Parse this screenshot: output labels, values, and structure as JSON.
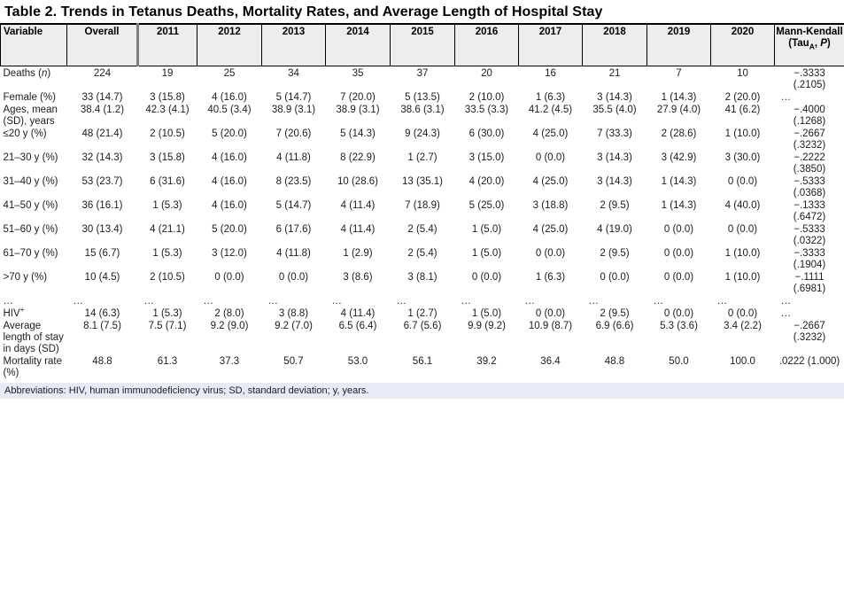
{
  "title": "Table 2. Trends in Tetanus Deaths, Mortality Rates, and Average Length of Hospital Stay",
  "footnote": "Abbreviations: HIV, human immunodeficiency virus; SD, standard deviation; y, years.",
  "colors": {
    "header_bg": "#ededed",
    "footnote_bg": "#e9eaf8",
    "divider": "#7f7f7f",
    "border": "#000000"
  },
  "table": {
    "columns": [
      {
        "name": "variable",
        "segs": [
          {
            "t": "Variable"
          }
        ]
      },
      {
        "name": "overall",
        "segs": [
          {
            "t": "Overall"
          }
        ]
      },
      {
        "name": "2011",
        "segs": [
          {
            "t": "2011"
          }
        ]
      },
      {
        "name": "2012",
        "segs": [
          {
            "t": "2012"
          }
        ]
      },
      {
        "name": "2013",
        "segs": [
          {
            "t": "2013"
          }
        ]
      },
      {
        "name": "2014",
        "segs": [
          {
            "t": "2014"
          }
        ]
      },
      {
        "name": "2015",
        "segs": [
          {
            "t": "2015"
          }
        ]
      },
      {
        "name": "2016",
        "segs": [
          {
            "t": "2016"
          }
        ]
      },
      {
        "name": "2017",
        "segs": [
          {
            "t": "2017"
          }
        ]
      },
      {
        "name": "2018",
        "segs": [
          {
            "t": "2018"
          }
        ]
      },
      {
        "name": "2019",
        "segs": [
          {
            "t": "2019"
          }
        ]
      },
      {
        "name": "2020",
        "segs": [
          {
            "t": "2020"
          }
        ]
      },
      {
        "name": "mann-kendall",
        "segs": [
          {
            "t": "Mann-Kendall (Tau"
          },
          {
            "t": "A",
            "s": "sub"
          },
          {
            "t": ", "
          },
          {
            "t": "P",
            "s": "i"
          },
          {
            "t": ")"
          }
        ]
      }
    ],
    "rows": [
      {
        "id": "deaths",
        "label": [
          {
            "t": "Deaths ("
          },
          {
            "t": "n",
            "s": "i"
          },
          {
            "t": ")"
          }
        ],
        "cells": [
          "224",
          "19",
          "25",
          "34",
          "35",
          "37",
          "20",
          "16",
          "21",
          "7",
          "10"
        ],
        "mk": [
          "−.3333",
          "(.2105)"
        ]
      },
      {
        "id": "female",
        "label": [
          {
            "t": "Female (%)"
          }
        ],
        "cells": [
          "33 (14.7)",
          "3 (15.8)",
          "4 (16.0)",
          "5 (14.7)",
          "7 (20.0)",
          "5 (13.5)",
          "2 (10.0)",
          "1 (6.3)",
          "3 (14.3)",
          "1 (14.3)",
          "2 (20.0)"
        ],
        "mk": [
          "…"
        ]
      },
      {
        "id": "ages-mean",
        "label": [
          {
            "t": "Ages, mean (SD), years"
          }
        ],
        "cells": [
          "38.4 (1.2)",
          "42.3 (4.1)",
          "40.5 (3.4)",
          "38.9 (3.1)",
          "38.9 (3.1)",
          "38.6 (3.1)",
          "33.5 (3.3)",
          "41.2 (4.5)",
          "35.5 (4.0)",
          "27.9 (4.0)",
          "41 (6.2)"
        ],
        "mk": [
          "−.4000",
          "(.1268)"
        ]
      },
      {
        "id": "age-le20",
        "label": [
          {
            "t": "≤20 y (%)"
          }
        ],
        "cells": [
          "48 (21.4)",
          "2 (10.5)",
          "5 (20.0)",
          "7 (20.6)",
          "5 (14.3)",
          "9 (24.3)",
          "6 (30.0)",
          "4 (25.0)",
          "7 (33.3)",
          "2 (28.6)",
          "1 (10.0)"
        ],
        "mk": [
          "−.2667",
          "(.3232)"
        ]
      },
      {
        "id": "age-21-30",
        "label": [
          {
            "t": "21–30 y (%)"
          }
        ],
        "cells": [
          "32 (14.3)",
          "3 (15.8)",
          "4 (16.0)",
          "4 (11.8)",
          "8 (22.9)",
          "1 (2.7)",
          "3 (15.0)",
          "0 (0.0)",
          "3 (14.3)",
          "3 (42.9)",
          "3 (30.0)"
        ],
        "mk": [
          "−.2222",
          "(.3850)"
        ]
      },
      {
        "id": "age-31-40",
        "label": [
          {
            "t": "31–40 y (%)"
          }
        ],
        "cells": [
          "53 (23.7)",
          "6 (31.6)",
          "4 (16.0)",
          "8 (23.5)",
          "10 (28.6)",
          "13 (35.1)",
          "4 (20.0)",
          "4 (25.0)",
          "3 (14.3)",
          "1 (14.3)",
          "0 (0.0)"
        ],
        "mk": [
          "−.5333",
          "(.0368)"
        ]
      },
      {
        "id": "age-41-50",
        "label": [
          {
            "t": "41–50 y (%)"
          }
        ],
        "cells": [
          "36 (16.1)",
          "1 (5.3)",
          "4 (16.0)",
          "5 (14.7)",
          "4 (11.4)",
          "7 (18.9)",
          "5 (25.0)",
          "3 (18.8)",
          "2 (9.5)",
          "1 (14.3)",
          "4 (40.0)"
        ],
        "mk": [
          "−.1333",
          "(.6472)"
        ]
      },
      {
        "id": "age-51-60",
        "label": [
          {
            "t": "51–60 y (%)"
          }
        ],
        "cells": [
          "30 (13.4)",
          "4 (21.1)",
          "5 (20.0)",
          "6 (17.6)",
          "4 (11.4)",
          "2 (5.4)",
          "1 (5.0)",
          "4 (25.0)",
          "4 (19.0)",
          "0 (0.0)",
          "0 (0.0)"
        ],
        "mk": [
          "−.5333",
          "(.0322)"
        ]
      },
      {
        "id": "age-61-70",
        "label": [
          {
            "t": "61–70 y (%)"
          }
        ],
        "cells": [
          "15 (6.7)",
          "1 (5.3)",
          "3 (12.0)",
          "4 (11.8)",
          "1 (2.9)",
          "2 (5.4)",
          "1 (5.0)",
          "0 (0.0)",
          "2 (9.5)",
          "0 (0.0)",
          "1 (10.0)"
        ],
        "mk": [
          "−.3333",
          "(.1904)"
        ]
      },
      {
        "id": "age-gt70",
        "label": [
          {
            "t": ">70 y (%)"
          }
        ],
        "cells": [
          "10 (4.5)",
          "2 (10.5)",
          "0 (0.0)",
          "0 (0.0)",
          "3 (8.6)",
          "3 (8.1)",
          "0 (0.0)",
          "1 (6.3)",
          "0 (0.0)",
          "0 (0.0)",
          "1 (10.0)"
        ],
        "mk": [
          "−.1111",
          "(.6981)"
        ]
      },
      {
        "id": "ellipsis",
        "label": [
          {
            "t": "…"
          }
        ],
        "cells": [
          "…",
          "…",
          "…",
          "…",
          "…",
          "…",
          "…",
          "…",
          "…",
          "…",
          "…"
        ],
        "mk": [
          "…"
        ]
      },
      {
        "id": "hiv",
        "label": [
          {
            "t": "HIV"
          },
          {
            "t": "+",
            "s": "sup"
          }
        ],
        "cells": [
          "14 (6.3)",
          "1 (5.3)",
          "2 (8.0)",
          "3 (8.8)",
          "4 (11.4)",
          "1 (2.7)",
          "1 (5.0)",
          "0 (0.0)",
          "2 (9.5)",
          "0 (0.0)",
          "0 (0.0)"
        ],
        "mk": [
          "…"
        ]
      },
      {
        "id": "avg-stay",
        "label": [
          {
            "t": "Average length of stay in days (SD)"
          }
        ],
        "cells": [
          "8.1 (7.5)",
          "7.5 (7.1)",
          "9.2 (9.0)",
          "9.2 (7.0)",
          "6.5 (6.4)",
          "6.7 (5.6)",
          "9.9 (9.2)",
          "10.9 (8.7)",
          "6.9 (6.6)",
          "5.3 (3.6)",
          "3.4 (2.2)"
        ],
        "mk": [
          "−.2667",
          "(.3232)"
        ]
      },
      {
        "id": "mortality-rate",
        "label": [
          {
            "t": "Mortality rate (%)"
          }
        ],
        "cells": [
          "48.8",
          "61.3",
          "37.3",
          "50.7",
          "53.0",
          "56.1",
          "39.2",
          "36.4",
          "48.8",
          "50.0",
          "100.0"
        ],
        "mk": [
          ".0222 (1.000)"
        ]
      }
    ]
  }
}
